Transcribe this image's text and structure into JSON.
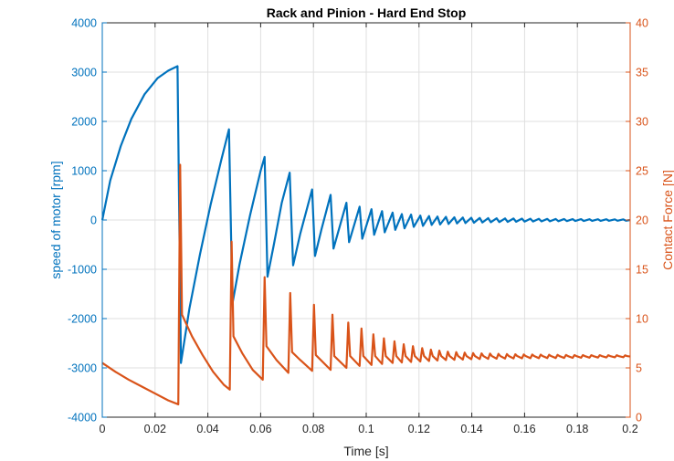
{
  "chart_data": {
    "type": "line",
    "title": "Rack and Pinion - Hard End Stop",
    "xlabel": "Time [s]",
    "ylabel_left": "speed of motor [rpm]",
    "ylabel_right": "Contact Force [N]",
    "xlim": [
      0,
      0.2
    ],
    "ylim_left": [
      -4000,
      4000
    ],
    "ylim_right": [
      0,
      40
    ],
    "x_ticks": [
      "0",
      "0.02",
      "0.04",
      "0.06",
      "0.08",
      "0.1",
      "0.12",
      "0.14",
      "0.16",
      "0.18",
      "0.2"
    ],
    "y_left_ticks": [
      "4000",
      "3000",
      "2000",
      "1000",
      "0",
      "-1000",
      "-2000",
      "-3000",
      "-4000"
    ],
    "y_right_ticks": [
      "40",
      "35",
      "30",
      "25",
      "20",
      "15",
      "10",
      "5",
      "0"
    ],
    "grid": true,
    "colors": {
      "speed": "#0072BD",
      "force": "#D95319",
      "axis_text": "#262626"
    },
    "series": [
      {
        "axis": "left",
        "color": "#0072BD",
        "points": [
          [
            0,
            0
          ],
          [
            0.003,
            800
          ],
          [
            0.007,
            1500
          ],
          [
            0.011,
            2050
          ],
          [
            0.016,
            2550
          ],
          [
            0.021,
            2880
          ],
          [
            0.025,
            3030
          ],
          [
            0.0285,
            3120
          ],
          [
            0.0298,
            -2900
          ],
          [
            0.033,
            -1800
          ],
          [
            0.037,
            -700
          ],
          [
            0.041,
            300
          ],
          [
            0.045,
            1200
          ],
          [
            0.048,
            1840
          ],
          [
            0.0493,
            -1700
          ],
          [
            0.052,
            -900
          ],
          [
            0.056,
            100
          ],
          [
            0.06,
            1000
          ],
          [
            0.0615,
            1280
          ],
          [
            0.0626,
            -1150
          ],
          [
            0.065,
            -500
          ],
          [
            0.068,
            350
          ],
          [
            0.071,
            960
          ],
          [
            0.0723,
            -920
          ],
          [
            0.075,
            -280
          ],
          [
            0.0795,
            620
          ],
          [
            0.0806,
            -730
          ],
          [
            0.083,
            -200
          ],
          [
            0.0865,
            510
          ],
          [
            0.0876,
            -580
          ],
          [
            0.0925,
            350
          ],
          [
            0.0935,
            -450
          ],
          [
            0.0975,
            270
          ],
          [
            0.0985,
            -380
          ],
          [
            0.102,
            220
          ],
          [
            0.103,
            -300
          ],
          [
            0.106,
            180
          ],
          [
            0.107,
            -250
          ],
          [
            0.11,
            150
          ],
          [
            0.111,
            -200
          ],
          [
            0.1135,
            120
          ],
          [
            0.1145,
            -170
          ],
          [
            0.117,
            110
          ],
          [
            0.118,
            -140
          ],
          [
            0.1205,
            90
          ],
          [
            0.1215,
            -120
          ],
          [
            0.1238,
            80
          ],
          [
            0.1248,
            -100
          ],
          [
            0.127,
            70
          ],
          [
            0.128,
            -90
          ],
          [
            0.1302,
            65
          ],
          [
            0.1312,
            -80
          ],
          [
            0.1334,
            55
          ],
          [
            0.1344,
            -70
          ],
          [
            0.1366,
            50
          ],
          [
            0.1376,
            -62
          ],
          [
            0.1398,
            45
          ],
          [
            0.1408,
            -55
          ],
          [
            0.143,
            42
          ],
          [
            0.144,
            -50
          ],
          [
            0.1462,
            38
          ],
          [
            0.1472,
            -45
          ],
          [
            0.1494,
            35
          ],
          [
            0.1504,
            -42
          ],
          [
            0.1526,
            32
          ],
          [
            0.1536,
            -38
          ],
          [
            0.1558,
            30
          ],
          [
            0.1568,
            -35
          ],
          [
            0.159,
            28
          ],
          [
            0.16,
            -32
          ],
          [
            0.1622,
            26
          ],
          [
            0.1632,
            -30
          ],
          [
            0.1654,
            24
          ],
          [
            0.1664,
            -28
          ],
          [
            0.1686,
            22
          ],
          [
            0.1696,
            -26
          ],
          [
            0.1718,
            20
          ],
          [
            0.1728,
            -24
          ],
          [
            0.175,
            19
          ],
          [
            0.176,
            -22
          ],
          [
            0.1782,
            18
          ],
          [
            0.1792,
            -20
          ],
          [
            0.1814,
            17
          ],
          [
            0.1824,
            -19
          ],
          [
            0.1846,
            16
          ],
          [
            0.1856,
            -18
          ],
          [
            0.1878,
            15
          ],
          [
            0.1888,
            -17
          ],
          [
            0.191,
            14
          ],
          [
            0.192,
            -16
          ],
          [
            0.1942,
            13
          ],
          [
            0.1952,
            -15
          ],
          [
            0.1974,
            12
          ],
          [
            0.1984,
            -14
          ],
          [
            0.2,
            0
          ]
        ]
      },
      {
        "axis": "right",
        "color": "#D95319",
        "points": [
          [
            0,
            5.5
          ],
          [
            0.005,
            4.6
          ],
          [
            0.01,
            3.8
          ],
          [
            0.015,
            3.1
          ],
          [
            0.02,
            2.4
          ],
          [
            0.025,
            1.7
          ],
          [
            0.0288,
            1.3
          ],
          [
            0.0295,
            25.6
          ],
          [
            0.0302,
            10.4
          ],
          [
            0.034,
            8.2
          ],
          [
            0.038,
            6.3
          ],
          [
            0.042,
            4.6
          ],
          [
            0.046,
            3.3
          ],
          [
            0.0483,
            2.8
          ],
          [
            0.049,
            17.8
          ],
          [
            0.0497,
            8.2
          ],
          [
            0.053,
            6.5
          ],
          [
            0.057,
            4.8
          ],
          [
            0.0608,
            3.8
          ],
          [
            0.0615,
            14.2
          ],
          [
            0.0622,
            7.2
          ],
          [
            0.066,
            5.8
          ],
          [
            0.0705,
            4.5
          ],
          [
            0.0712,
            12.6
          ],
          [
            0.0719,
            6.6
          ],
          [
            0.075,
            5.8
          ],
          [
            0.0795,
            4.7
          ],
          [
            0.0802,
            11.4
          ],
          [
            0.0809,
            6.3
          ],
          [
            0.0865,
            4.8
          ],
          [
            0.0872,
            10.4
          ],
          [
            0.0879,
            6.2
          ],
          [
            0.0925,
            5
          ],
          [
            0.0932,
            9.6
          ],
          [
            0.0939,
            6.2
          ],
          [
            0.0975,
            5.2
          ],
          [
            0.0982,
            9
          ],
          [
            0.0989,
            6.2
          ],
          [
            0.102,
            5.3
          ],
          [
            0.1027,
            8.4
          ],
          [
            0.1034,
            6.2
          ],
          [
            0.106,
            5.4
          ],
          [
            0.1067,
            8
          ],
          [
            0.1074,
            6.2
          ],
          [
            0.11,
            5.5
          ],
          [
            0.1107,
            7.7
          ],
          [
            0.1114,
            6.2
          ],
          [
            0.1135,
            5.55
          ],
          [
            0.1142,
            7.4
          ],
          [
            0.1149,
            6.2
          ],
          [
            0.117,
            5.6
          ],
          [
            0.1177,
            7.2
          ],
          [
            0.1184,
            6.2
          ],
          [
            0.1205,
            5.65
          ],
          [
            0.1212,
            7
          ],
          [
            0.1219,
            6.2
          ],
          [
            0.1238,
            5.7
          ],
          [
            0.1245,
            6.85
          ],
          [
            0.1252,
            6.2
          ],
          [
            0.127,
            5.75
          ],
          [
            0.1277,
            6.75
          ],
          [
            0.1284,
            6.2
          ],
          [
            0.1302,
            5.8
          ],
          [
            0.1309,
            6.65
          ],
          [
            0.1316,
            6.2
          ],
          [
            0.1334,
            5.82
          ],
          [
            0.1341,
            6.6
          ],
          [
            0.1348,
            6.2
          ],
          [
            0.1366,
            5.85
          ],
          [
            0.1373,
            6.55
          ],
          [
            0.138,
            6.2
          ],
          [
            0.1398,
            5.88
          ],
          [
            0.1405,
            6.5
          ],
          [
            0.1412,
            6.2
          ],
          [
            0.143,
            5.9
          ],
          [
            0.1437,
            6.47
          ],
          [
            0.1444,
            6.2
          ],
          [
            0.1462,
            5.92
          ],
          [
            0.1469,
            6.45
          ],
          [
            0.1476,
            6.2
          ],
          [
            0.1494,
            5.94
          ],
          [
            0.1501,
            6.42
          ],
          [
            0.1508,
            6.2
          ],
          [
            0.1526,
            5.95
          ],
          [
            0.1533,
            6.4
          ],
          [
            0.154,
            6.2
          ],
          [
            0.1558,
            5.96
          ],
          [
            0.1565,
            6.38
          ],
          [
            0.1572,
            6.2
          ],
          [
            0.159,
            5.97
          ],
          [
            0.1597,
            6.36
          ],
          [
            0.1604,
            6.2
          ],
          [
            0.1622,
            5.98
          ],
          [
            0.1629,
            6.35
          ],
          [
            0.1636,
            6.2
          ],
          [
            0.1654,
            5.99
          ],
          [
            0.1661,
            6.34
          ],
          [
            0.1668,
            6.2
          ],
          [
            0.1686,
            6
          ],
          [
            0.1693,
            6.33
          ],
          [
            0.17,
            6.2
          ],
          [
            0.1718,
            6
          ],
          [
            0.1725,
            6.32
          ],
          [
            0.1732,
            6.2
          ],
          [
            0.175,
            6.01
          ],
          [
            0.1757,
            6.31
          ],
          [
            0.1764,
            6.2
          ],
          [
            0.1782,
            6.02
          ],
          [
            0.1789,
            6.3
          ],
          [
            0.1796,
            6.2
          ],
          [
            0.1814,
            6.03
          ],
          [
            0.1821,
            6.3
          ],
          [
            0.1828,
            6.2
          ],
          [
            0.1846,
            6.04
          ],
          [
            0.1853,
            6.29
          ],
          [
            0.186,
            6.2
          ],
          [
            0.1878,
            6.05
          ],
          [
            0.1885,
            6.29
          ],
          [
            0.1892,
            6.2
          ],
          [
            0.191,
            6.06
          ],
          [
            0.1917,
            6.28
          ],
          [
            0.1924,
            6.2
          ],
          [
            0.1942,
            6.07
          ],
          [
            0.1949,
            6.28
          ],
          [
            0.1956,
            6.2
          ],
          [
            0.1974,
            6.08
          ],
          [
            0.1981,
            6.27
          ],
          [
            0.1988,
            6.2
          ],
          [
            0.2,
            6.15
          ]
        ]
      }
    ]
  }
}
